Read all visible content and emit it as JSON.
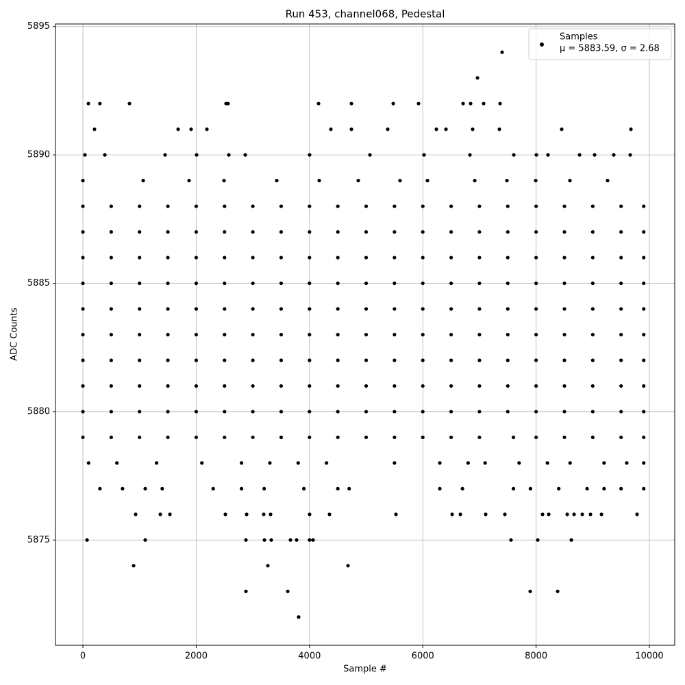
{
  "chart_data": {
    "type": "scatter",
    "title": "Run 453, channel068, Pedestal",
    "xlabel": "Sample #",
    "ylabel": "ADC Counts",
    "xlim": [
      -484,
      10447
    ],
    "ylim": [
      5870.9,
      5895.1
    ],
    "xticks": [
      0,
      2000,
      4000,
      6000,
      8000,
      10000
    ],
    "yticks": [
      5875,
      5880,
      5885,
      5890,
      5895
    ],
    "grid": true,
    "legend": "upper right",
    "annotation": "μ = 5883.59, σ = 2.68",
    "series": [
      {
        "name": "Samples",
        "color": "#000000",
        "x": [
          7400,
          6965,
          97,
          300,
          822,
          2527,
          2563,
          4160,
          4740,
          5478,
          5925,
          6711,
          6844,
          7074,
          7364,
          205,
          1681,
          1910,
          2189,
          4377,
          4740,
          5381,
          6239,
          6409,
          6880,
          7352,
          8452,
          9674,
          36,
          387,
          1451,
          2007,
          2576,
          2866,
          4002,
          5067,
          6022,
          6832,
          7606,
          8005,
          8210,
          8767,
          9033,
          9371,
          9661,
          0,
          1064,
          1874,
          2491,
          3422,
          4172,
          4861,
          5598,
          6082,
          6917,
          7485,
          7993,
          8597,
          9262,
          0,
          500,
          1000,
          1500,
          2000,
          2500,
          3000,
          3500,
          4000,
          4500,
          5000,
          5500,
          6000,
          6500,
          7000,
          7500,
          8000,
          8500,
          9000,
          9500,
          9900,
          0,
          500,
          1000,
          1500,
          2000,
          2500,
          3000,
          3500,
          4000,
          4500,
          5000,
          5500,
          6000,
          6500,
          7000,
          7500,
          8000,
          8500,
          9000,
          9500,
          9900,
          0,
          500,
          1000,
          1500,
          2000,
          2500,
          3000,
          3500,
          4000,
          4500,
          5000,
          5500,
          6000,
          6500,
          7000,
          7500,
          8000,
          8500,
          9000,
          9500,
          9900,
          0,
          500,
          1000,
          1500,
          2000,
          2500,
          3000,
          3500,
          4000,
          4500,
          5000,
          5500,
          6000,
          6500,
          7000,
          7500,
          8000,
          8500,
          9000,
          9500,
          9900,
          0,
          500,
          1000,
          1500,
          2000,
          2500,
          3000,
          3500,
          4000,
          4500,
          5000,
          5500,
          6000,
          6500,
          7000,
          7500,
          8000,
          8500,
          9000,
          9500,
          9900,
          0,
          500,
          1000,
          1500,
          2000,
          2500,
          3000,
          3500,
          4000,
          4500,
          5000,
          5500,
          6000,
          6500,
          7000,
          7500,
          8000,
          8500,
          9000,
          9500,
          9900,
          0,
          500,
          1000,
          1500,
          2000,
          2500,
          3000,
          3500,
          4000,
          4500,
          5000,
          5500,
          6000,
          6500,
          7000,
          7500,
          8000,
          8500,
          9000,
          9500,
          9900,
          0,
          500,
          1000,
          1500,
          2000,
          2500,
          3000,
          3500,
          4000,
          4500,
          5000,
          5500,
          6000,
          6500,
          7000,
          7500,
          8000,
          8500,
          9000,
          9500,
          9900,
          0,
          500,
          1000,
          1500,
          2000,
          2500,
          3000,
          3500,
          4000,
          4500,
          5000,
          5500,
          6000,
          6500,
          7000,
          7500,
          8000,
          8500,
          9000,
          9500,
          9900,
          0,
          500,
          1000,
          1500,
          2000,
          2500,
          3000,
          3500,
          4000,
          4500,
          5000,
          5500,
          6000,
          6500,
          7000,
          7600,
          8000,
          8500,
          9000,
          9500,
          9900,
          100,
          600,
          1300,
          2100,
          2800,
          3300,
          3800,
          4300,
          5500,
          6300,
          6800,
          7100,
          7700,
          8200,
          8600,
          9200,
          9600,
          9900,
          300,
          700,
          1100,
          1400,
          2300,
          2800,
          3200,
          3900,
          4500,
          4700,
          6300,
          6700,
          7600,
          7900,
          8400,
          8900,
          9200,
          9500,
          9900,
          931,
          1366,
          1536,
          2515,
          2890,
          3192,
          3313,
          4002,
          4353,
          5526,
          6518,
          6663,
          7110,
          7449,
          8114,
          8223,
          8549,
          8670,
          8815,
          8960,
          9154,
          9782,
          73,
          1100,
          2878,
          3204,
          3325,
          3664,
          3773,
          4002,
          4063,
          7557,
          8029,
          8622,
          895,
          3265,
          4680,
          2878,
          3616,
          7896,
          8380,
          3809
        ],
        "values": [
          5894,
          5893,
          5892,
          5892,
          5892,
          5892,
          5892,
          5892,
          5892,
          5892,
          5892,
          5892,
          5892,
          5892,
          5892,
          5891,
          5891,
          5891,
          5891,
          5891,
          5891,
          5891,
          5891,
          5891,
          5891,
          5891,
          5891,
          5891,
          5890,
          5890,
          5890,
          5890,
          5890,
          5890,
          5890,
          5890,
          5890,
          5890,
          5890,
          5890,
          5890,
          5890,
          5890,
          5890,
          5890,
          5889,
          5889,
          5889,
          5889,
          5889,
          5889,
          5889,
          5889,
          5889,
          5889,
          5889,
          5889,
          5889,
          5889,
          5888,
          5888,
          5888,
          5888,
          5888,
          5888,
          5888,
          5888,
          5888,
          5888,
          5888,
          5888,
          5888,
          5888,
          5888,
          5888,
          5888,
          5888,
          5888,
          5888,
          5888,
          5887,
          5887,
          5887,
          5887,
          5887,
          5887,
          5887,
          5887,
          5887,
          5887,
          5887,
          5887,
          5887,
          5887,
          5887,
          5887,
          5887,
          5887,
          5887,
          5887,
          5887,
          5886,
          5886,
          5886,
          5886,
          5886,
          5886,
          5886,
          5886,
          5886,
          5886,
          5886,
          5886,
          5886,
          5886,
          5886,
          5886,
          5886,
          5886,
          5886,
          5886,
          5886,
          5885,
          5885,
          5885,
          5885,
          5885,
          5885,
          5885,
          5885,
          5885,
          5885,
          5885,
          5885,
          5885,
          5885,
          5885,
          5885,
          5885,
          5885,
          5885,
          5885,
          5885,
          5884,
          5884,
          5884,
          5884,
          5884,
          5884,
          5884,
          5884,
          5884,
          5884,
          5884,
          5884,
          5884,
          5884,
          5884,
          5884,
          5884,
          5884,
          5884,
          5884,
          5884,
          5883,
          5883,
          5883,
          5883,
          5883,
          5883,
          5883,
          5883,
          5883,
          5883,
          5883,
          5883,
          5883,
          5883,
          5883,
          5883,
          5883,
          5883,
          5883,
          5883,
          5883,
          5882,
          5882,
          5882,
          5882,
          5882,
          5882,
          5882,
          5882,
          5882,
          5882,
          5882,
          5882,
          5882,
          5882,
          5882,
          5882,
          5882,
          5882,
          5882,
          5882,
          5882,
          5881,
          5881,
          5881,
          5881,
          5881,
          5881,
          5881,
          5881,
          5881,
          5881,
          5881,
          5881,
          5881,
          5881,
          5881,
          5881,
          5881,
          5881,
          5881,
          5881,
          5881,
          5880,
          5880,
          5880,
          5880,
          5880,
          5880,
          5880,
          5880,
          5880,
          5880,
          5880,
          5880,
          5880,
          5880,
          5880,
          5880,
          5880,
          5880,
          5880,
          5880,
          5880,
          5879,
          5879,
          5879,
          5879,
          5879,
          5879,
          5879,
          5879,
          5879,
          5879,
          5879,
          5879,
          5879,
          5879,
          5879,
          5879,
          5879,
          5879,
          5879,
          5879,
          5879,
          5878,
          5878,
          5878,
          5878,
          5878,
          5878,
          5878,
          5878,
          5878,
          5878,
          5878,
          5878,
          5878,
          5878,
          5878,
          5878,
          5878,
          5878,
          5877,
          5877,
          5877,
          5877,
          5877,
          5877,
          5877,
          5877,
          5877,
          5877,
          5877,
          5877,
          5877,
          5877,
          5877,
          5877,
          5877,
          5877,
          5877,
          5876,
          5876,
          5876,
          5876,
          5876,
          5876,
          5876,
          5876,
          5876,
          5876,
          5876,
          5876,
          5876,
          5876,
          5876,
          5876,
          5876,
          5876,
          5876,
          5876,
          5876,
          5876,
          5875,
          5875,
          5875,
          5875,
          5875,
          5875,
          5875,
          5875,
          5875,
          5875,
          5875,
          5875,
          5874,
          5874,
          5874,
          5873,
          5873,
          5873,
          5873,
          5872
        ]
      }
    ]
  }
}
